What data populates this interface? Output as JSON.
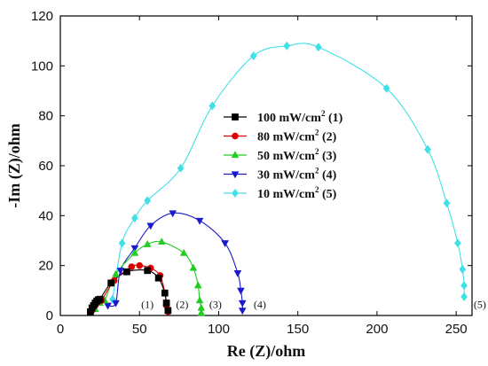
{
  "chart_data": {
    "type": "scatter",
    "xlabel": "Re (Z)/ohm",
    "ylabel": "-Im (Z)/ohm",
    "xlim": [
      0,
      260
    ],
    "ylim": [
      0,
      120
    ],
    "xticks": [
      0,
      50,
      100,
      150,
      200,
      250
    ],
    "yticks": [
      0,
      20,
      40,
      60,
      80,
      100,
      120
    ],
    "grid": false,
    "legend_position": "center",
    "series": [
      {
        "name_main": "100 mW/cm",
        "name_sup": "2",
        "name_tail": " (1)",
        "label": "(1)",
        "label_at": [
          55,
          2
        ],
        "color": "#000000",
        "marker": "square",
        "x": [
          19,
          20,
          21,
          22,
          23,
          24,
          25,
          32,
          42,
          55,
          62,
          66,
          67,
          68
        ],
        "y": [
          1.5,
          3,
          4,
          5,
          5.8,
          6.3,
          6.5,
          13,
          17.5,
          18,
          15,
          9,
          5,
          2
        ]
      },
      {
        "name_main": "80 mW/cm",
        "name_sup": "2",
        "name_tail": " (2)",
        "label": "(2)",
        "label_at": [
          77,
          2
        ],
        "color": "#dd0000",
        "marker": "circle",
        "x": [
          20,
          22,
          24,
          26,
          34,
          45,
          50,
          57,
          63,
          66,
          67,
          68
        ],
        "y": [
          2,
          4,
          5.5,
          6,
          14,
          19.5,
          20,
          19,
          16,
          9,
          4,
          1.5
        ]
      },
      {
        "name_main": "50 mW/cm",
        "name_sup": "2",
        "name_tail": " (3)",
        "label": "(3)",
        "label_at": [
          98,
          2
        ],
        "color": "#22cc22",
        "marker": "triangle-up",
        "x": [
          22,
          25,
          28,
          35,
          47,
          55,
          64,
          78,
          84,
          87,
          88,
          89,
          89
        ],
        "y": [
          2.5,
          5,
          6,
          16.5,
          25,
          28.5,
          29.5,
          25,
          19,
          12,
          6,
          3,
          1
        ]
      },
      {
        "name_main": "30 mW/cm",
        "name_sup": "2",
        "name_tail": " (4)",
        "label": "(4)",
        "label_at": [
          126,
          2
        ],
        "color": "#1a1acc",
        "marker": "triangle-down",
        "x": [
          30,
          35,
          38,
          47,
          57,
          71,
          88,
          104,
          112,
          114,
          115,
          115
        ],
        "y": [
          4,
          5,
          18,
          27,
          36,
          41,
          38,
          29,
          17,
          10,
          5,
          2
        ]
      },
      {
        "name_main": "10 mW/cm",
        "name_sup": "2",
        "name_tail": " (5)",
        "label": "(5)",
        "label_at": [
          265,
          2
        ],
        "color": "#40e0e8",
        "marker": "diamond",
        "x": [
          33,
          39,
          47,
          55,
          76,
          96,
          122,
          143,
          163,
          206,
          232,
          244,
          251,
          254,
          255,
          255
        ],
        "y": [
          6.5,
          29,
          39,
          46,
          59,
          84,
          104,
          108,
          107.5,
          91,
          66.5,
          45,
          29,
          18.5,
          12,
          7.5
        ]
      }
    ]
  }
}
